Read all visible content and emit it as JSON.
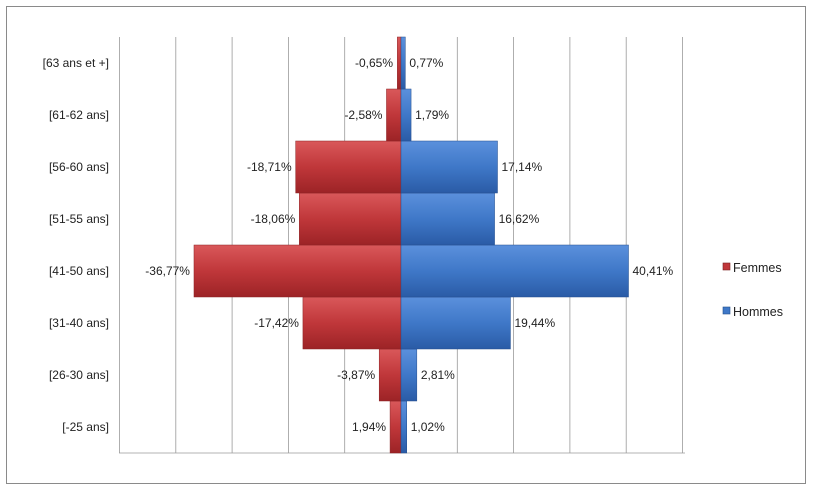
{
  "chart_data": {
    "type": "bar",
    "orientation": "horizontal",
    "layout": "population-pyramid",
    "categories": [
      "[-25 ans]",
      "[26-30 ans]",
      "[31-40 ans]",
      "[41-50 ans]",
      "[51-55 ans]",
      "[56-60 ans]",
      "[61-62 ans]",
      "[63 ans et +]"
    ],
    "series": [
      {
        "name": "Femmes",
        "color": "#c0373a",
        "values": [
          -1.94,
          -3.87,
          -17.42,
          -36.77,
          -18.06,
          -18.71,
          -2.58,
          -0.65
        ],
        "labels": [
          "1,94%",
          "-3,87%",
          "-17,42%",
          "-36,77%",
          "-18,06%",
          "-18,71%",
          "-2,58%",
          "-0,65%"
        ]
      },
      {
        "name": "Hommes",
        "color": "#3f78c8",
        "values": [
          1.02,
          2.81,
          19.44,
          40.41,
          16.62,
          17.14,
          1.79,
          0.77
        ],
        "labels": [
          "1,02%",
          "2,81%",
          "19,44%",
          "40,41%",
          "16,62%",
          "17,14%",
          "1,79%",
          "0,77%"
        ]
      }
    ],
    "xlim": [
      -50,
      50
    ],
    "grid": true,
    "legend_position": "right"
  }
}
